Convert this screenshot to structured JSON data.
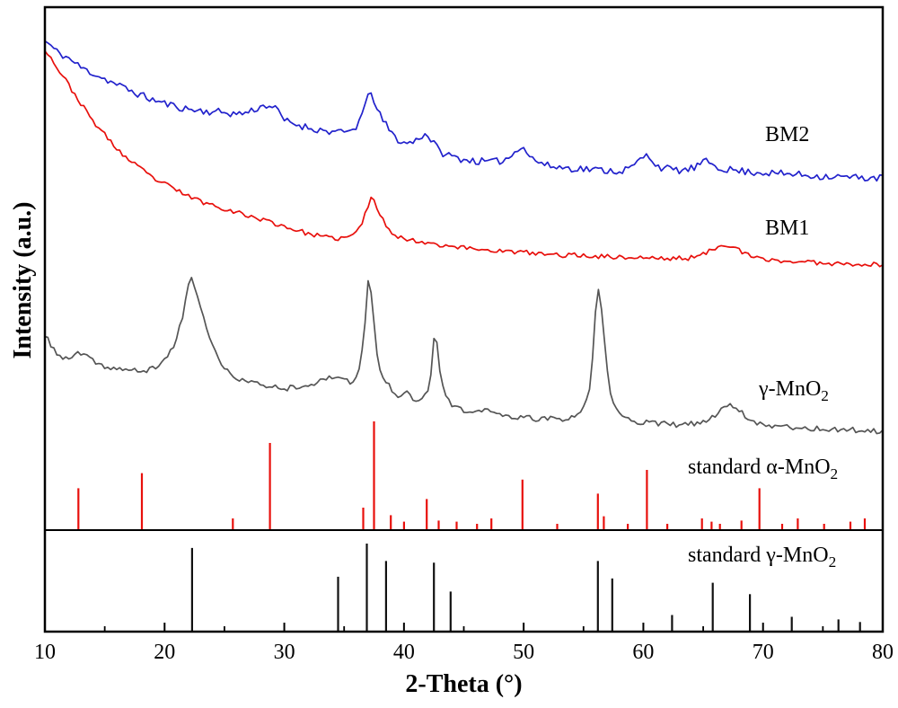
{
  "labels": {
    "bm2": "BM2",
    "bm1": "BM1",
    "gamma": {
      "text": "γ-MnO",
      "sub": "2"
    },
    "std_alpha": {
      "text": "standard α-MnO",
      "sub": "2"
    },
    "std_gamma": {
      "text": "standard γ-MnO",
      "sub": "2"
    }
  },
  "chart_data": {
    "type": "line",
    "title": "",
    "xlabel": "2-Theta (°)",
    "ylabel": "Intensity (a.u.)",
    "xlim": [
      10,
      80
    ],
    "x_ticks": [
      10,
      20,
      30,
      40,
      50,
      60,
      70,
      80
    ],
    "x_minor_ticks": [
      15,
      25,
      35,
      45,
      55,
      65,
      75
    ],
    "grid": false,
    "legend_position": "inline-right-annotations",
    "panels": [
      "main: BM2, BM1, γ-MnO2 curves + standard α-MnO2 sticks",
      "bottom: standard γ-MnO2 sticks"
    ],
    "colors": {
      "bm2_blue": "#2222cc",
      "bm1_red": "#e8100c",
      "gamma_gray": "#555555",
      "stick_black": "#111111",
      "axis": "#000000"
    },
    "series": [
      {
        "name": "BM2",
        "dname": "bm2-curve",
        "kind": "curve",
        "panel": "main",
        "color": "#2222cc",
        "noise": 0.7,
        "seed": 11,
        "points": [
          [
            10,
            93.5
          ],
          [
            11,
            91.5
          ],
          [
            12,
            90.2
          ],
          [
            13,
            88.5
          ],
          [
            14,
            87.4
          ],
          [
            15,
            86.3
          ],
          [
            16,
            85.2
          ],
          [
            17,
            84.2
          ],
          [
            18,
            83.2
          ],
          [
            19,
            82.3
          ],
          [
            20,
            81.6
          ],
          [
            21,
            81.0
          ],
          [
            22,
            80.5
          ],
          [
            23,
            80.2
          ],
          [
            24,
            80.0
          ],
          [
            25,
            79.9
          ],
          [
            26,
            79.6
          ],
          [
            27,
            80.0
          ],
          [
            28,
            80.9
          ],
          [
            28.8,
            81.2
          ],
          [
            29.5,
            80.0
          ],
          [
            30,
            78.4
          ],
          [
            31,
            77.6
          ],
          [
            32,
            77.0
          ],
          [
            33,
            76.5
          ],
          [
            34,
            76.2
          ],
          [
            35,
            76.0
          ],
          [
            36,
            77.2
          ],
          [
            36.8,
            81.0
          ],
          [
            37.2,
            84.2
          ],
          [
            37.7,
            80.5
          ],
          [
            38.2,
            78.5
          ],
          [
            39,
            75.8
          ],
          [
            40,
            74.0
          ],
          [
            41,
            74.6
          ],
          [
            41.8,
            75.7
          ],
          [
            42.5,
            74.0
          ],
          [
            43,
            72.4
          ],
          [
            44,
            71.5
          ],
          [
            45,
            70.9
          ],
          [
            46,
            70.6
          ],
          [
            47,
            70.4
          ],
          [
            48,
            70.6
          ],
          [
            49,
            71.6
          ],
          [
            49.8,
            73.5
          ],
          [
            50.6,
            71.3
          ],
          [
            51.5,
            70.2
          ],
          [
            52,
            69.7
          ],
          [
            53,
            69.4
          ],
          [
            54,
            69.2
          ],
          [
            55,
            69.1
          ],
          [
            56,
            68.9
          ],
          [
            57,
            68.8
          ],
          [
            58,
            68.7
          ],
          [
            59,
            69.4
          ],
          [
            60.3,
            71.6
          ],
          [
            61.2,
            69.7
          ],
          [
            62,
            69.1
          ],
          [
            63,
            68.8
          ],
          [
            64,
            69.1
          ],
          [
            65.3,
            70.4
          ],
          [
            66.3,
            69.4
          ],
          [
            67,
            69.0
          ],
          [
            68,
            68.7
          ],
          [
            69,
            68.5
          ],
          [
            70,
            68.4
          ],
          [
            71,
            68.2
          ],
          [
            72,
            68.1
          ],
          [
            73,
            68.0
          ],
          [
            74,
            67.8
          ],
          [
            75,
            67.7
          ],
          [
            76,
            67.6
          ],
          [
            77,
            67.5
          ],
          [
            78,
            67.4
          ],
          [
            79,
            67.4
          ],
          [
            80,
            67.3
          ]
        ]
      },
      {
        "name": "BM1",
        "dname": "bm1-curve",
        "kind": "curve",
        "panel": "main",
        "color": "#e8100c",
        "noise": 0.45,
        "seed": 23,
        "points": [
          [
            10,
            92.0
          ],
          [
            10.5,
            90.3
          ],
          [
            11,
            88.5
          ],
          [
            11.5,
            86.8
          ],
          [
            12,
            85.1
          ],
          [
            12.5,
            83.3
          ],
          [
            13,
            81.6
          ],
          [
            13.5,
            79.9
          ],
          [
            14,
            78.2
          ],
          [
            15,
            75.6
          ],
          [
            16,
            73.0
          ],
          [
            17,
            70.8
          ],
          [
            18,
            69.1
          ],
          [
            19,
            67.4
          ],
          [
            20,
            66.2
          ],
          [
            21,
            65.0
          ],
          [
            22,
            63.9
          ],
          [
            23,
            62.9
          ],
          [
            24,
            62.2
          ],
          [
            25,
            61.5
          ],
          [
            26,
            60.8
          ],
          [
            27,
            60.1
          ],
          [
            28,
            59.5
          ],
          [
            29,
            58.8
          ],
          [
            30,
            58.1
          ],
          [
            31,
            57.4
          ],
          [
            32,
            56.7
          ],
          [
            33,
            56.2
          ],
          [
            34,
            55.8
          ],
          [
            35,
            55.9
          ],
          [
            35.8,
            56.5
          ],
          [
            36.5,
            58.8
          ],
          [
            37.0,
            62.0
          ],
          [
            37.35,
            63.3
          ],
          [
            37.8,
            61.5
          ],
          [
            38.3,
            59.0
          ],
          [
            39,
            57.0
          ],
          [
            40,
            55.7
          ],
          [
            41,
            55.3
          ],
          [
            42,
            55.0
          ],
          [
            43,
            54.6
          ],
          [
            44,
            54.3
          ],
          [
            45,
            54.0
          ],
          [
            46,
            53.8
          ],
          [
            47,
            53.6
          ],
          [
            48,
            53.4
          ],
          [
            49,
            53.2
          ],
          [
            50,
            53.1
          ],
          [
            51,
            52.9
          ],
          [
            52,
            52.7
          ],
          [
            53,
            52.6
          ],
          [
            54,
            52.6
          ],
          [
            55,
            52.5
          ],
          [
            56,
            52.4
          ],
          [
            57,
            52.3
          ],
          [
            58,
            52.2
          ],
          [
            59,
            52.1
          ],
          [
            60,
            52.1
          ],
          [
            61,
            52.0
          ],
          [
            62,
            51.9
          ],
          [
            63,
            52.0
          ],
          [
            64,
            52.1
          ],
          [
            65,
            52.7
          ],
          [
            66,
            54.0
          ],
          [
            66.8,
            54.7
          ],
          [
            67.5,
            54.1
          ],
          [
            68.2,
            53.2
          ],
          [
            69,
            52.3
          ],
          [
            70,
            51.8
          ],
          [
            71,
            51.6
          ],
          [
            72,
            51.4
          ],
          [
            73,
            51.3
          ],
          [
            74,
            51.2
          ],
          [
            75,
            51.1
          ],
          [
            76,
            51.0
          ],
          [
            77,
            51.0
          ],
          [
            78,
            50.9
          ],
          [
            79,
            50.8
          ],
          [
            80,
            50.7
          ]
        ]
      },
      {
        "name": "γ-MnO2",
        "dname": "gamma-mno2-curve",
        "kind": "curve",
        "panel": "main",
        "color": "#555555",
        "noise": 0.5,
        "seed": 37,
        "points": [
          [
            10,
            37.0
          ],
          [
            10.5,
            35.5
          ],
          [
            11,
            33.8
          ],
          [
            11.5,
            33.0
          ],
          [
            12,
            32.6
          ],
          [
            12.7,
            33.8
          ],
          [
            13.2,
            33.5
          ],
          [
            14,
            32.3
          ],
          [
            15,
            31.3
          ],
          [
            16,
            30.9
          ],
          [
            17,
            30.6
          ],
          [
            18,
            30.4
          ],
          [
            19,
            30.9
          ],
          [
            20,
            32.6
          ],
          [
            20.8,
            35.5
          ],
          [
            21.5,
            41.0
          ],
          [
            22.0,
            46.5
          ],
          [
            22.3,
            47.8
          ],
          [
            22.8,
            44.5
          ],
          [
            23.3,
            40.0
          ],
          [
            24,
            35.2
          ],
          [
            25,
            30.9
          ],
          [
            26,
            29.2
          ],
          [
            27,
            28.4
          ],
          [
            28,
            27.8
          ],
          [
            29,
            27.5
          ],
          [
            30,
            27.1
          ],
          [
            31,
            27.5
          ],
          [
            32,
            27.8
          ],
          [
            33,
            28.4
          ],
          [
            34,
            29.2
          ],
          [
            34.5,
            29.6
          ],
          [
            35,
            28.9
          ],
          [
            35.6,
            28.4
          ],
          [
            36.2,
            30.1
          ],
          [
            36.7,
            38.0
          ],
          [
            37.0,
            47.8
          ],
          [
            37.35,
            43.0
          ],
          [
            37.8,
            32.6
          ],
          [
            38.3,
            29.2
          ],
          [
            38.8,
            27.5
          ],
          [
            39.5,
            25.8
          ],
          [
            40.2,
            26.6
          ],
          [
            41,
            24.9
          ],
          [
            41.8,
            26.0
          ],
          [
            42.2,
            29.0
          ],
          [
            42.6,
            37.5
          ],
          [
            43.1,
            29.2
          ],
          [
            43.6,
            25.5
          ],
          [
            44,
            24.1
          ],
          [
            45,
            22.7
          ],
          [
            46,
            22.3
          ],
          [
            46.8,
            23.2
          ],
          [
            47.5,
            22.5
          ],
          [
            48,
            22.0
          ],
          [
            49,
            21.6
          ],
          [
            50,
            21.5
          ],
          [
            51,
            21.3
          ],
          [
            52,
            21.3
          ],
          [
            53,
            21.1
          ],
          [
            54,
            21.5
          ],
          [
            55,
            23.2
          ],
          [
            55.6,
            29.0
          ],
          [
            56.2,
            46.0
          ],
          [
            56.7,
            37.0
          ],
          [
            57.2,
            26.5
          ],
          [
            57.8,
            23.0
          ],
          [
            58.5,
            21.5
          ],
          [
            59,
            21.0
          ],
          [
            60,
            20.6
          ],
          [
            61,
            20.4
          ],
          [
            62,
            20.3
          ],
          [
            63,
            20.1
          ],
          [
            64,
            20.3
          ],
          [
            65,
            20.6
          ],
          [
            66,
            22.0
          ],
          [
            67,
            24.1
          ],
          [
            67.6,
            23.5
          ],
          [
            68.2,
            22.5
          ],
          [
            69,
            21.0
          ],
          [
            70,
            20.3
          ],
          [
            71,
            19.9
          ],
          [
            72,
            19.8
          ],
          [
            73,
            19.6
          ],
          [
            74,
            19.4
          ],
          [
            75,
            19.4
          ],
          [
            76,
            19.2
          ],
          [
            77,
            19.2
          ],
          [
            78,
            19.1
          ],
          [
            79,
            19.0
          ],
          [
            80,
            18.9
          ]
        ]
      },
      {
        "name": "standard α-MnO2",
        "dname": "standard-alpha-mno2-stick",
        "kind": "sticks",
        "panel": "main",
        "color": "#e8100c",
        "peaks": [
          [
            12.8,
            38
          ],
          [
            18.1,
            52
          ],
          [
            25.7,
            10
          ],
          [
            28.8,
            80
          ],
          [
            36.6,
            20
          ],
          [
            37.5,
            100
          ],
          [
            38.9,
            13
          ],
          [
            40.0,
            7
          ],
          [
            41.9,
            28
          ],
          [
            42.9,
            8
          ],
          [
            44.4,
            7
          ],
          [
            46.1,
            5
          ],
          [
            47.3,
            10
          ],
          [
            49.9,
            46
          ],
          [
            52.8,
            5
          ],
          [
            56.2,
            33
          ],
          [
            56.7,
            12
          ],
          [
            58.7,
            5
          ],
          [
            60.3,
            55
          ],
          [
            62.0,
            5
          ],
          [
            64.9,
            10
          ],
          [
            65.7,
            7
          ],
          [
            66.4,
            5
          ],
          [
            68.2,
            8
          ],
          [
            69.7,
            38
          ],
          [
            71.6,
            5
          ],
          [
            72.9,
            10
          ],
          [
            75.1,
            5
          ],
          [
            77.3,
            7
          ],
          [
            78.5,
            10
          ]
        ]
      },
      {
        "name": "standard γ-MnO2",
        "dname": "standard-gamma-mno2-stick",
        "kind": "sticks",
        "panel": "bottom",
        "color": "#111111",
        "peaks": [
          [
            22.3,
            95
          ],
          [
            34.5,
            62
          ],
          [
            36.9,
            100
          ],
          [
            38.5,
            80
          ],
          [
            42.5,
            78
          ],
          [
            43.9,
            45
          ],
          [
            56.2,
            80
          ],
          [
            57.4,
            60
          ],
          [
            62.4,
            18
          ],
          [
            65.8,
            55
          ],
          [
            68.9,
            42
          ],
          [
            72.4,
            16
          ],
          [
            76.3,
            13
          ],
          [
            78.1,
            10
          ]
        ]
      }
    ]
  }
}
